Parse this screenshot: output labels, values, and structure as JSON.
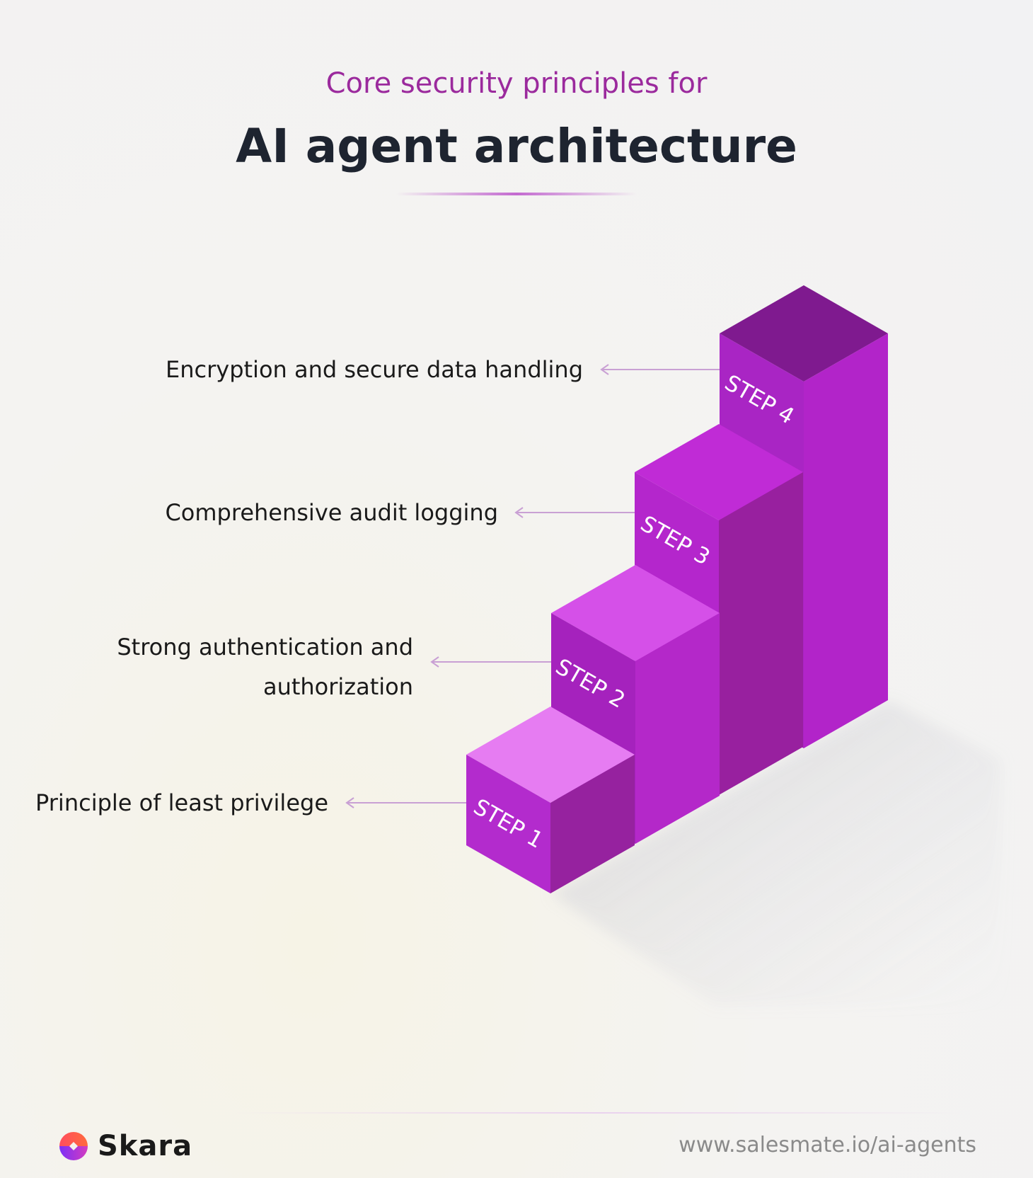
{
  "header": {
    "subtitle": "Core security principles for",
    "title": "AI agent architecture"
  },
  "steps": [
    {
      "badge": "STEP 1",
      "label": "Principle of least privilege"
    },
    {
      "badge": "STEP 2",
      "label": "Strong authentication and authorization"
    },
    {
      "badge": "STEP 3",
      "label": "Comprehensive audit logging"
    },
    {
      "badge": "STEP 4",
      "label": "Encryption and secure data handling"
    }
  ],
  "footer": {
    "brand": "Skara",
    "url": "www.salesmate.io/ai-agents"
  },
  "colors": {
    "accent": "#9b2a9d",
    "title": "#1e2430"
  }
}
